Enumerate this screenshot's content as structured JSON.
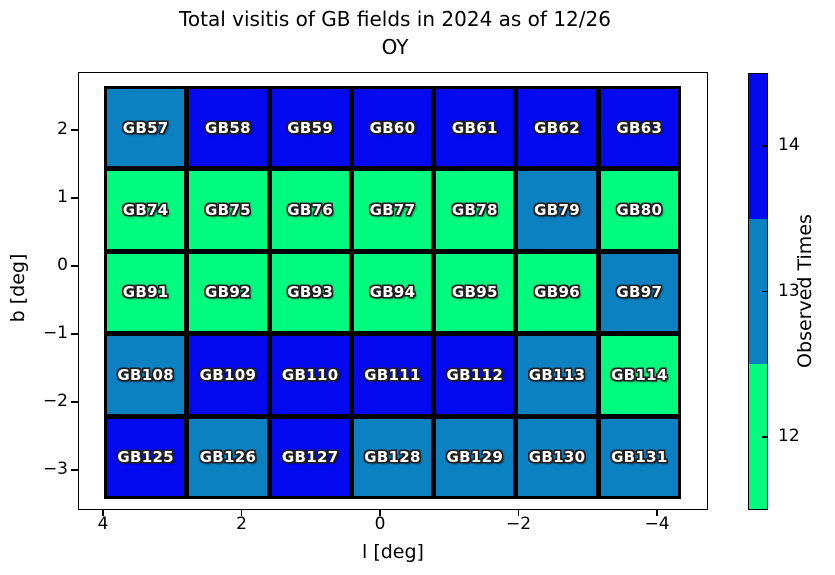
{
  "title": "Total visitis of GB fields in 2024 as of 12/26",
  "subtitle": "OY",
  "xlabel": "l [deg]",
  "ylabel": "b [deg]",
  "colorbar": {
    "label": "Observed Times",
    "range": [
      11.5,
      14.5
    ],
    "ticks": [
      14,
      13,
      12
    ],
    "segments": [
      {
        "value": 14,
        "color": "#0509f0"
      },
      {
        "value": 13,
        "color": "#0b81c2"
      },
      {
        "value": 12,
        "color": "#00fb7f"
      }
    ]
  },
  "chart_data": {
    "type": "heatmap",
    "title": "Total visitis of GB fields in 2024 as of 12/26 OY",
    "xlabel": "l [deg]",
    "ylabel": "b [deg]",
    "value_label": "Observed Times",
    "x_ticks": [
      4,
      2,
      0,
      -2,
      -4
    ],
    "y_ticks": [
      2,
      1,
      0,
      -1,
      -2,
      -3
    ],
    "xlim": [
      4.4,
      -4.7
    ],
    "ylim": [
      -3.55,
      2.8
    ],
    "x_inverted": true,
    "value_range": [
      11.5,
      14.5
    ],
    "value_colors": {
      "12": "#00fb7f",
      "13": "#0b81c2",
      "14": "#0509f0"
    },
    "rows": [
      {
        "fields": [
          "GB57",
          "GB58",
          "GB59",
          "GB60",
          "GB61",
          "GB62",
          "GB63"
        ],
        "values": [
          13,
          14,
          14,
          14,
          14,
          14,
          14
        ]
      },
      {
        "fields": [
          "GB74",
          "GB75",
          "GB76",
          "GB77",
          "GB78",
          "GB79",
          "GB80"
        ],
        "values": [
          12,
          12,
          12,
          12,
          12,
          13,
          12
        ]
      },
      {
        "fields": [
          "GB91",
          "GB92",
          "GB93",
          "GB94",
          "GB95",
          "GB96",
          "GB97"
        ],
        "values": [
          12,
          12,
          12,
          12,
          12,
          12,
          13
        ]
      },
      {
        "fields": [
          "GB108",
          "GB109",
          "GB110",
          "GB111",
          "GB112",
          "GB113",
          "GB114"
        ],
        "values": [
          13,
          14,
          14,
          14,
          14,
          13,
          12
        ]
      },
      {
        "fields": [
          "GB125",
          "GB126",
          "GB127",
          "GB128",
          "GB129",
          "GB130",
          "GB131"
        ],
        "values": [
          14,
          13,
          14,
          13,
          13,
          13,
          13
        ]
      }
    ]
  }
}
